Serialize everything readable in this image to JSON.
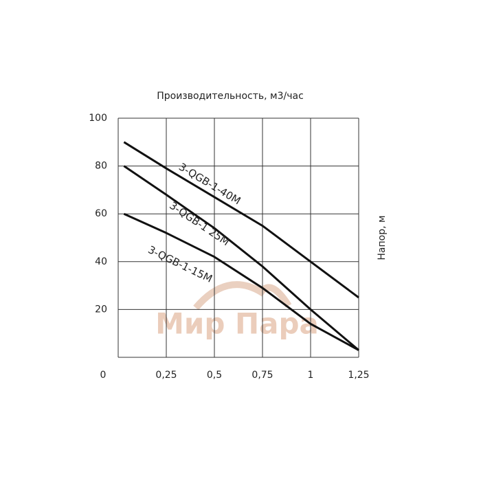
{
  "chart_data": {
    "type": "line",
    "title": "Производительность, м3/час",
    "y_label": "Напор, м",
    "watermark": "Мир Пара",
    "x": [
      0.03,
      0.25,
      0.5,
      0.75,
      1,
      1.25
    ],
    "series": [
      {
        "name": "3-QGB-1-40M",
        "color": "#111111",
        "values": [
          90,
          79,
          67,
          55,
          40,
          25
        ]
      },
      {
        "name": "3-QGB-1 25M",
        "color": "#111111",
        "values": [
          80,
          68,
          54,
          38,
          20,
          3
        ]
      },
      {
        "name": "3-QGB-1-15M",
        "color": "#111111",
        "values": [
          60,
          52,
          42,
          29,
          14,
          3
        ]
      }
    ],
    "xlim": [
      0,
      1.25
    ],
    "ylim": [
      0,
      100
    ],
    "xticks": [
      0,
      {
        "value": 0.25,
        "label": "0,25"
      },
      {
        "value": 0.5,
        "label": "0,5"
      },
      {
        "value": 0.75,
        "label": "0,75"
      },
      1,
      {
        "value": 1.25,
        "label": "1,25"
      }
    ],
    "yticks": [
      20,
      40,
      60,
      80,
      100
    ],
    "grid": true
  }
}
